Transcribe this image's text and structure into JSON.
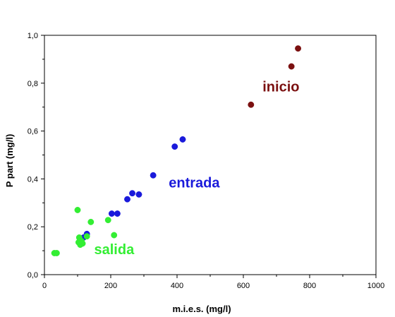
{
  "chart_data": {
    "type": "scatter",
    "xlabel": "m.i.e.s. (mg/l)",
    "ylabel": "P part (mg/l)",
    "xlim": [
      0,
      1000
    ],
    "ylim": [
      0,
      1.0
    ],
    "xticks": [
      "0",
      "200",
      "400",
      "600",
      "800",
      "1000"
    ],
    "yticks": [
      "0,0",
      "0,2",
      "0,4",
      "0,6",
      "0,8",
      "1,0"
    ],
    "grid": false,
    "legend": "none",
    "series": [
      {
        "name": "inicio",
        "color": "#7b1010",
        "points": [
          {
            "x": 623,
            "y": 0.71
          },
          {
            "x": 745,
            "y": 0.87
          },
          {
            "x": 765,
            "y": 0.945
          }
        ]
      },
      {
        "name": "entrada",
        "color": "#1a1adb",
        "points": [
          {
            "x": 118,
            "y": 0.155
          },
          {
            "x": 128,
            "y": 0.17
          },
          {
            "x": 203,
            "y": 0.255
          },
          {
            "x": 220,
            "y": 0.255
          },
          {
            "x": 250,
            "y": 0.315
          },
          {
            "x": 265,
            "y": 0.34
          },
          {
            "x": 285,
            "y": 0.335
          },
          {
            "x": 328,
            "y": 0.415
          },
          {
            "x": 393,
            "y": 0.535
          },
          {
            "x": 417,
            "y": 0.565
          }
        ]
      },
      {
        "name": "salida",
        "color": "#33ee33",
        "points": [
          {
            "x": 30,
            "y": 0.09
          },
          {
            "x": 37,
            "y": 0.09
          },
          {
            "x": 100,
            "y": 0.27
          },
          {
            "x": 103,
            "y": 0.135
          },
          {
            "x": 105,
            "y": 0.155
          },
          {
            "x": 108,
            "y": 0.125
          },
          {
            "x": 112,
            "y": 0.14
          },
          {
            "x": 115,
            "y": 0.13
          },
          {
            "x": 128,
            "y": 0.16
          },
          {
            "x": 140,
            "y": 0.22
          },
          {
            "x": 192,
            "y": 0.228
          },
          {
            "x": 210,
            "y": 0.165
          }
        ]
      }
    ]
  }
}
